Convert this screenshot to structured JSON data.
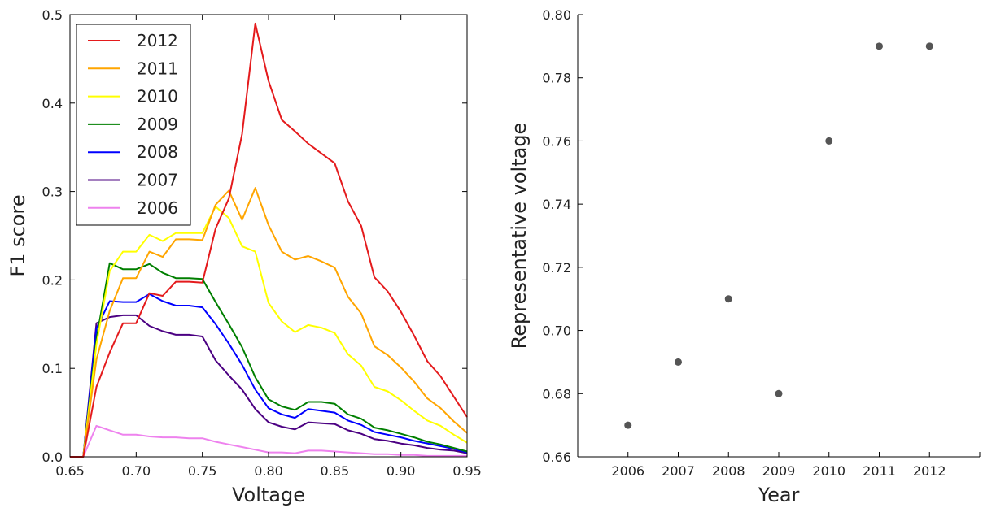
{
  "chart_data": [
    {
      "type": "line",
      "title": "",
      "xlabel": "Voltage",
      "ylabel": "F1 score",
      "xlim": [
        0.65,
        0.95
      ],
      "ylim": [
        0.0,
        0.5
      ],
      "xticks": [
        "0.65",
        "0.70",
        "0.75",
        "0.80",
        "0.85",
        "0.90",
        "0.95"
      ],
      "yticks": [
        "0.0",
        "0.1",
        "0.2",
        "0.3",
        "0.4",
        "0.5"
      ],
      "grid": false,
      "legend_position": "top-left",
      "x": [
        0.65,
        0.66,
        0.67,
        0.68,
        0.69,
        0.7,
        0.71,
        0.72,
        0.73,
        0.74,
        0.75,
        0.76,
        0.77,
        0.78,
        0.79,
        0.8,
        0.81,
        0.82,
        0.83,
        0.84,
        0.85,
        0.86,
        0.87,
        0.88,
        0.89,
        0.9,
        0.91,
        0.92,
        0.93,
        0.94,
        0.95
      ],
      "series": [
        {
          "name": "2012",
          "color": "#e41a1c",
          "values": [
            0.0,
            0.0,
            0.079,
            0.118,
            0.151,
            0.151,
            0.185,
            0.182,
            0.198,
            0.198,
            0.197,
            0.258,
            0.292,
            0.365,
            0.49,
            0.425,
            0.381,
            0.368,
            0.354,
            0.343,
            0.332,
            0.289,
            0.261,
            0.203,
            0.187,
            0.164,
            0.137,
            0.108,
            0.091,
            0.068,
            0.045
          ]
        },
        {
          "name": "2011",
          "color": "#ffa500",
          "values": [
            0.0,
            0.0,
            0.11,
            0.165,
            0.202,
            0.202,
            0.232,
            0.226,
            0.246,
            0.246,
            0.245,
            0.285,
            0.301,
            0.268,
            0.304,
            0.262,
            0.232,
            0.223,
            0.227,
            0.221,
            0.214,
            0.181,
            0.162,
            0.125,
            0.115,
            0.101,
            0.085,
            0.066,
            0.055,
            0.04,
            0.027
          ]
        },
        {
          "name": "2010",
          "color": "#ffff00",
          "values": [
            0.0,
            0.0,
            0.127,
            0.21,
            0.232,
            0.232,
            0.251,
            0.244,
            0.253,
            0.253,
            0.253,
            0.283,
            0.27,
            0.238,
            0.232,
            0.174,
            0.153,
            0.141,
            0.149,
            0.146,
            0.14,
            0.116,
            0.103,
            0.079,
            0.074,
            0.064,
            0.052,
            0.041,
            0.035,
            0.025,
            0.016
          ]
        },
        {
          "name": "2009",
          "color": "#007f00",
          "values": [
            0.0,
            0.0,
            0.133,
            0.219,
            0.212,
            0.212,
            0.218,
            0.208,
            0.202,
            0.202,
            0.201,
            0.175,
            0.15,
            0.124,
            0.09,
            0.065,
            0.057,
            0.053,
            0.062,
            0.062,
            0.06,
            0.048,
            0.043,
            0.033,
            0.03,
            0.026,
            0.022,
            0.017,
            0.014,
            0.01,
            0.006
          ]
        },
        {
          "name": "2008",
          "color": "#0000ff",
          "values": [
            0.0,
            0.0,
            0.145,
            0.176,
            0.175,
            0.175,
            0.184,
            0.176,
            0.171,
            0.171,
            0.169,
            0.15,
            0.128,
            0.104,
            0.076,
            0.055,
            0.048,
            0.044,
            0.054,
            0.052,
            0.05,
            0.041,
            0.036,
            0.028,
            0.025,
            0.022,
            0.018,
            0.015,
            0.012,
            0.009,
            0.005
          ]
        },
        {
          "name": "2007",
          "color": "#4b0082",
          "values": [
            0.0,
            0.0,
            0.151,
            0.158,
            0.16,
            0.16,
            0.148,
            0.142,
            0.138,
            0.138,
            0.136,
            0.109,
            0.092,
            0.076,
            0.054,
            0.039,
            0.034,
            0.031,
            0.039,
            0.038,
            0.037,
            0.03,
            0.026,
            0.02,
            0.018,
            0.015,
            0.013,
            0.01,
            0.008,
            0.007,
            0.004
          ]
        },
        {
          "name": "2006",
          "color": "#ee82ee",
          "values": [
            0.0,
            0.0,
            0.035,
            0.03,
            0.025,
            0.025,
            0.023,
            0.022,
            0.022,
            0.021,
            0.021,
            0.017,
            0.014,
            0.011,
            0.008,
            0.005,
            0.005,
            0.004,
            0.007,
            0.007,
            0.006,
            0.005,
            0.004,
            0.003,
            0.003,
            0.002,
            0.002,
            0.001,
            0.001,
            0.001,
            0.001
          ]
        }
      ]
    },
    {
      "type": "scatter",
      "title": "",
      "xlabel": "Year",
      "ylabel": "Representative voltage",
      "ylim": [
        0.66,
        0.8
      ],
      "yticks": [
        "0.66",
        "0.68",
        "0.70",
        "0.72",
        "0.74",
        "0.76",
        "0.78",
        "0.80"
      ],
      "grid": false,
      "marker_color": "#555555",
      "categories": [
        "2006",
        "2007",
        "2008",
        "2009",
        "2010",
        "2011",
        "2012"
      ],
      "values": [
        0.67,
        0.69,
        0.71,
        0.68,
        0.76,
        0.79,
        0.79
      ]
    }
  ]
}
